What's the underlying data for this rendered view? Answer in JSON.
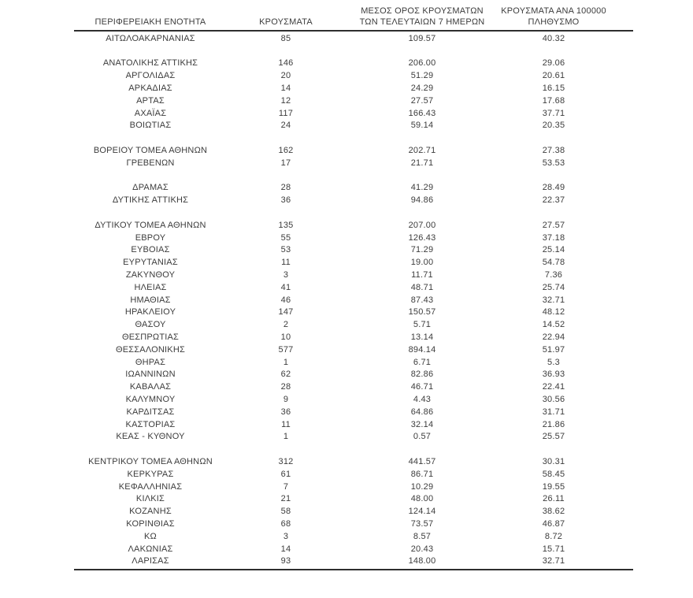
{
  "page": {
    "background": "#ffffff",
    "text_color": "#3c3c3c",
    "rule_color": "#2e2e2e"
  },
  "table": {
    "columns": [
      {
        "id": "region",
        "label_lines": [
          "ΠΕΡΙΦΕΡΕΙΑΚΗ ΕΝΟΤΗΤΑ"
        ]
      },
      {
        "id": "cases",
        "label_lines": [
          "ΚΡΟΥΣΜΑΤΑ"
        ]
      },
      {
        "id": "avg7",
        "label_lines": [
          "ΜΕΣΟΣ ΟΡΟΣ ΚΡΟΥΣΜΑΤΩΝ",
          "ΤΩΝ ΤΕΛΕΥΤΑΙΩΝ 7 ΗΜΕΡΩΝ"
        ]
      },
      {
        "id": "per100k",
        "label_lines": [
          "ΚΡΟΥΣΜΑΤΑ ΑΝΑ 100000",
          "ΠΛΗΘΥΣΜΟ"
        ]
      }
    ],
    "rows": [
      {
        "region": "ΑΙΤΩΛΟΑΚΑΡΝΑΝΙΑΣ",
        "cases": "85",
        "avg7": "109.57",
        "per100k": "40.32"
      },
      {
        "spacer": true
      },
      {
        "region": "ΑΝΑΤΟΛΙΚΗΣ ΑΤΤΙΚΗΣ",
        "cases": "146",
        "avg7": "206.00",
        "per100k": "29.06"
      },
      {
        "region": "ΑΡΓΟΛΙΔΑΣ",
        "cases": "20",
        "avg7": "51.29",
        "per100k": "20.61"
      },
      {
        "region": "ΑΡΚΑΔΙΑΣ",
        "cases": "14",
        "avg7": "24.29",
        "per100k": "16.15"
      },
      {
        "region": "ΑΡΤΑΣ",
        "cases": "12",
        "avg7": "27.57",
        "per100k": "17.68"
      },
      {
        "region": "ΑΧΑΪΑΣ",
        "cases": "117",
        "avg7": "166.43",
        "per100k": "37.71"
      },
      {
        "region": "ΒΟΙΩΤΙΑΣ",
        "cases": "24",
        "avg7": "59.14",
        "per100k": "20.35"
      },
      {
        "spacer": true
      },
      {
        "region": "ΒΟΡΕΙΟΥ ΤΟΜΕΑ ΑΘΗΝΩΝ",
        "cases": "162",
        "avg7": "202.71",
        "per100k": "27.38"
      },
      {
        "region": "ΓΡΕΒΕΝΩΝ",
        "cases": "17",
        "avg7": "21.71",
        "per100k": "53.53"
      },
      {
        "spacer": true
      },
      {
        "region": "ΔΡΑΜΑΣ",
        "cases": "28",
        "avg7": "41.29",
        "per100k": "28.49"
      },
      {
        "region": "ΔΥΤΙΚΗΣ ΑΤΤΙΚΗΣ",
        "cases": "36",
        "avg7": "94.86",
        "per100k": "22.37"
      },
      {
        "spacer": true
      },
      {
        "region": "ΔΥΤΙΚΟΥ ΤΟΜΕΑ ΑΘΗΝΩΝ",
        "cases": "135",
        "avg7": "207.00",
        "per100k": "27.57"
      },
      {
        "region": "ΕΒΡΟΥ",
        "cases": "55",
        "avg7": "126.43",
        "per100k": "37.18"
      },
      {
        "region": "ΕΥΒΟΙΑΣ",
        "cases": "53",
        "avg7": "71.29",
        "per100k": "25.14"
      },
      {
        "region": "ΕΥΡΥΤΑΝΙΑΣ",
        "cases": "11",
        "avg7": "19.00",
        "per100k": "54.78"
      },
      {
        "region": "ΖΑΚΥΝΘΟΥ",
        "cases": "3",
        "avg7": "11.71",
        "per100k": "7.36"
      },
      {
        "region": "ΗΛΕΙΑΣ",
        "cases": "41",
        "avg7": "48.71",
        "per100k": "25.74"
      },
      {
        "region": "ΗΜΑΘΙΑΣ",
        "cases": "46",
        "avg7": "87.43",
        "per100k": "32.71"
      },
      {
        "region": "ΗΡΑΚΛΕΙΟΥ",
        "cases": "147",
        "avg7": "150.57",
        "per100k": "48.12"
      },
      {
        "region": "ΘΑΣΟΥ",
        "cases": "2",
        "avg7": "5.71",
        "per100k": "14.52"
      },
      {
        "region": "ΘΕΣΠΡΩΤΙΑΣ",
        "cases": "10",
        "avg7": "13.14",
        "per100k": "22.94"
      },
      {
        "region": "ΘΕΣΣΑΛΟΝΙΚΗΣ",
        "cases": "577",
        "avg7": "894.14",
        "per100k": "51.97"
      },
      {
        "region": "ΘΗΡΑΣ",
        "cases": "1",
        "avg7": "6.71",
        "per100k": "5.3"
      },
      {
        "region": "ΙΩΑΝΝΙΝΩΝ",
        "cases": "62",
        "avg7": "82.86",
        "per100k": "36.93"
      },
      {
        "region": "ΚΑΒΑΛΑΣ",
        "cases": "28",
        "avg7": "46.71",
        "per100k": "22.41"
      },
      {
        "region": "ΚΑΛΥΜΝΟΥ",
        "cases": "9",
        "avg7": "4.43",
        "per100k": "30.56"
      },
      {
        "region": "ΚΑΡΔΙΤΣΑΣ",
        "cases": "36",
        "avg7": "64.86",
        "per100k": "31.71"
      },
      {
        "region": "ΚΑΣΤΟΡΙΑΣ",
        "cases": "11",
        "avg7": "32.14",
        "per100k": "21.86"
      },
      {
        "region": "ΚΕΑΣ - ΚΥΘΝΟΥ",
        "cases": "1",
        "avg7": "0.57",
        "per100k": "25.57"
      },
      {
        "spacer": true
      },
      {
        "region": "ΚΕΝΤΡΙΚΟΥ ΤΟΜΕΑ ΑΘΗΝΩΝ",
        "cases": "312",
        "avg7": "441.57",
        "per100k": "30.31"
      },
      {
        "region": "ΚΕΡΚΥΡΑΣ",
        "cases": "61",
        "avg7": "86.71",
        "per100k": "58.45"
      },
      {
        "region": "ΚΕΦΑΛΛΗΝΙΑΣ",
        "cases": "7",
        "avg7": "10.29",
        "per100k": "19.55"
      },
      {
        "region": "ΚΙΛΚΙΣ",
        "cases": "21",
        "avg7": "48.00",
        "per100k": "26.11"
      },
      {
        "region": "ΚΟΖΑΝΗΣ",
        "cases": "58",
        "avg7": "124.14",
        "per100k": "38.62"
      },
      {
        "region": "ΚΟΡΙΝΘΙΑΣ",
        "cases": "68",
        "avg7": "73.57",
        "per100k": "46.87"
      },
      {
        "region": "ΚΩ",
        "cases": "3",
        "avg7": "8.57",
        "per100k": "8.72"
      },
      {
        "region": "ΛΑΚΩΝΙΑΣ",
        "cases": "14",
        "avg7": "20.43",
        "per100k": "15.71"
      },
      {
        "region": "ΛΑΡΙΣΑΣ",
        "cases": "93",
        "avg7": "148.00",
        "per100k": "32.71"
      }
    ]
  }
}
